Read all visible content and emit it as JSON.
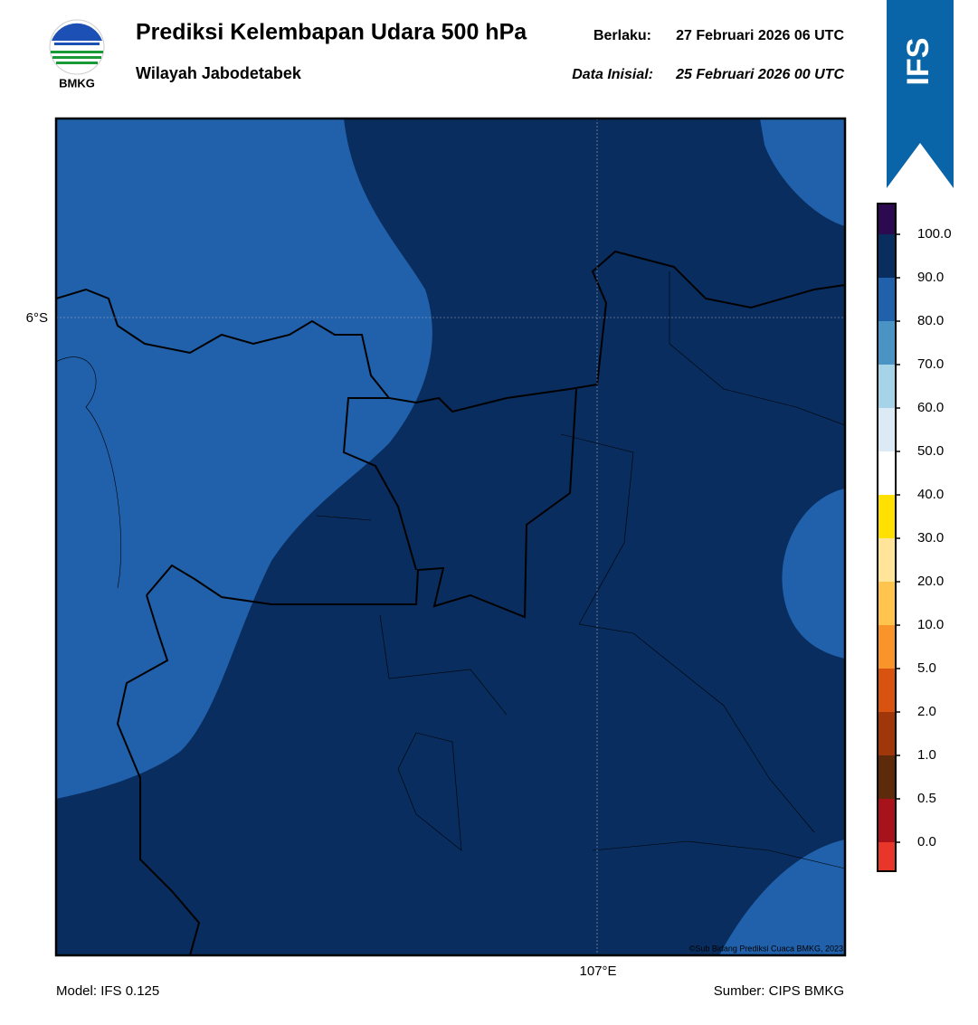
{
  "logo": {
    "label": "BMKG"
  },
  "header": {
    "title": "Prediksi Kelembapan Udara 500 hPa",
    "subtitle": "Wilayah Jabodetabek",
    "valid_label": "Berlaku:",
    "valid_date": "27 Februari 2026 06 UTC",
    "init_label": "Data Inisial:",
    "init_date": "25 Februari 2026 00 UTC"
  },
  "badge": "IFS",
  "map": {
    "lat_label": "6°S",
    "lon_label": "107°E",
    "credit": "©Sub Bidang Prediksi Cuaca BMKG, 2023"
  },
  "colorbar": {
    "labels": [
      "100.0",
      "90.0",
      "80.0",
      "70.0",
      "60.0",
      "50.0",
      "40.0",
      "30.0",
      "20.0",
      "10.0",
      "5.0",
      "2.0",
      "1.0",
      "0.5",
      "0.0"
    ],
    "colors": [
      "#2c0a4f",
      "#082d5e",
      "#2161ab",
      "#4a93c5",
      "#a6d3e7",
      "#dceaf6",
      "#ffffff",
      "#ffe000",
      "#ffe49a",
      "#ffc44d",
      "#f9942a",
      "#d95310",
      "#a0370b",
      "#5e2a0c",
      "#a8121a",
      "#e8362b"
    ]
  },
  "footer": {
    "model": "Model: IFS 0.125",
    "source": "Sumber: CIPS BMKG"
  }
}
